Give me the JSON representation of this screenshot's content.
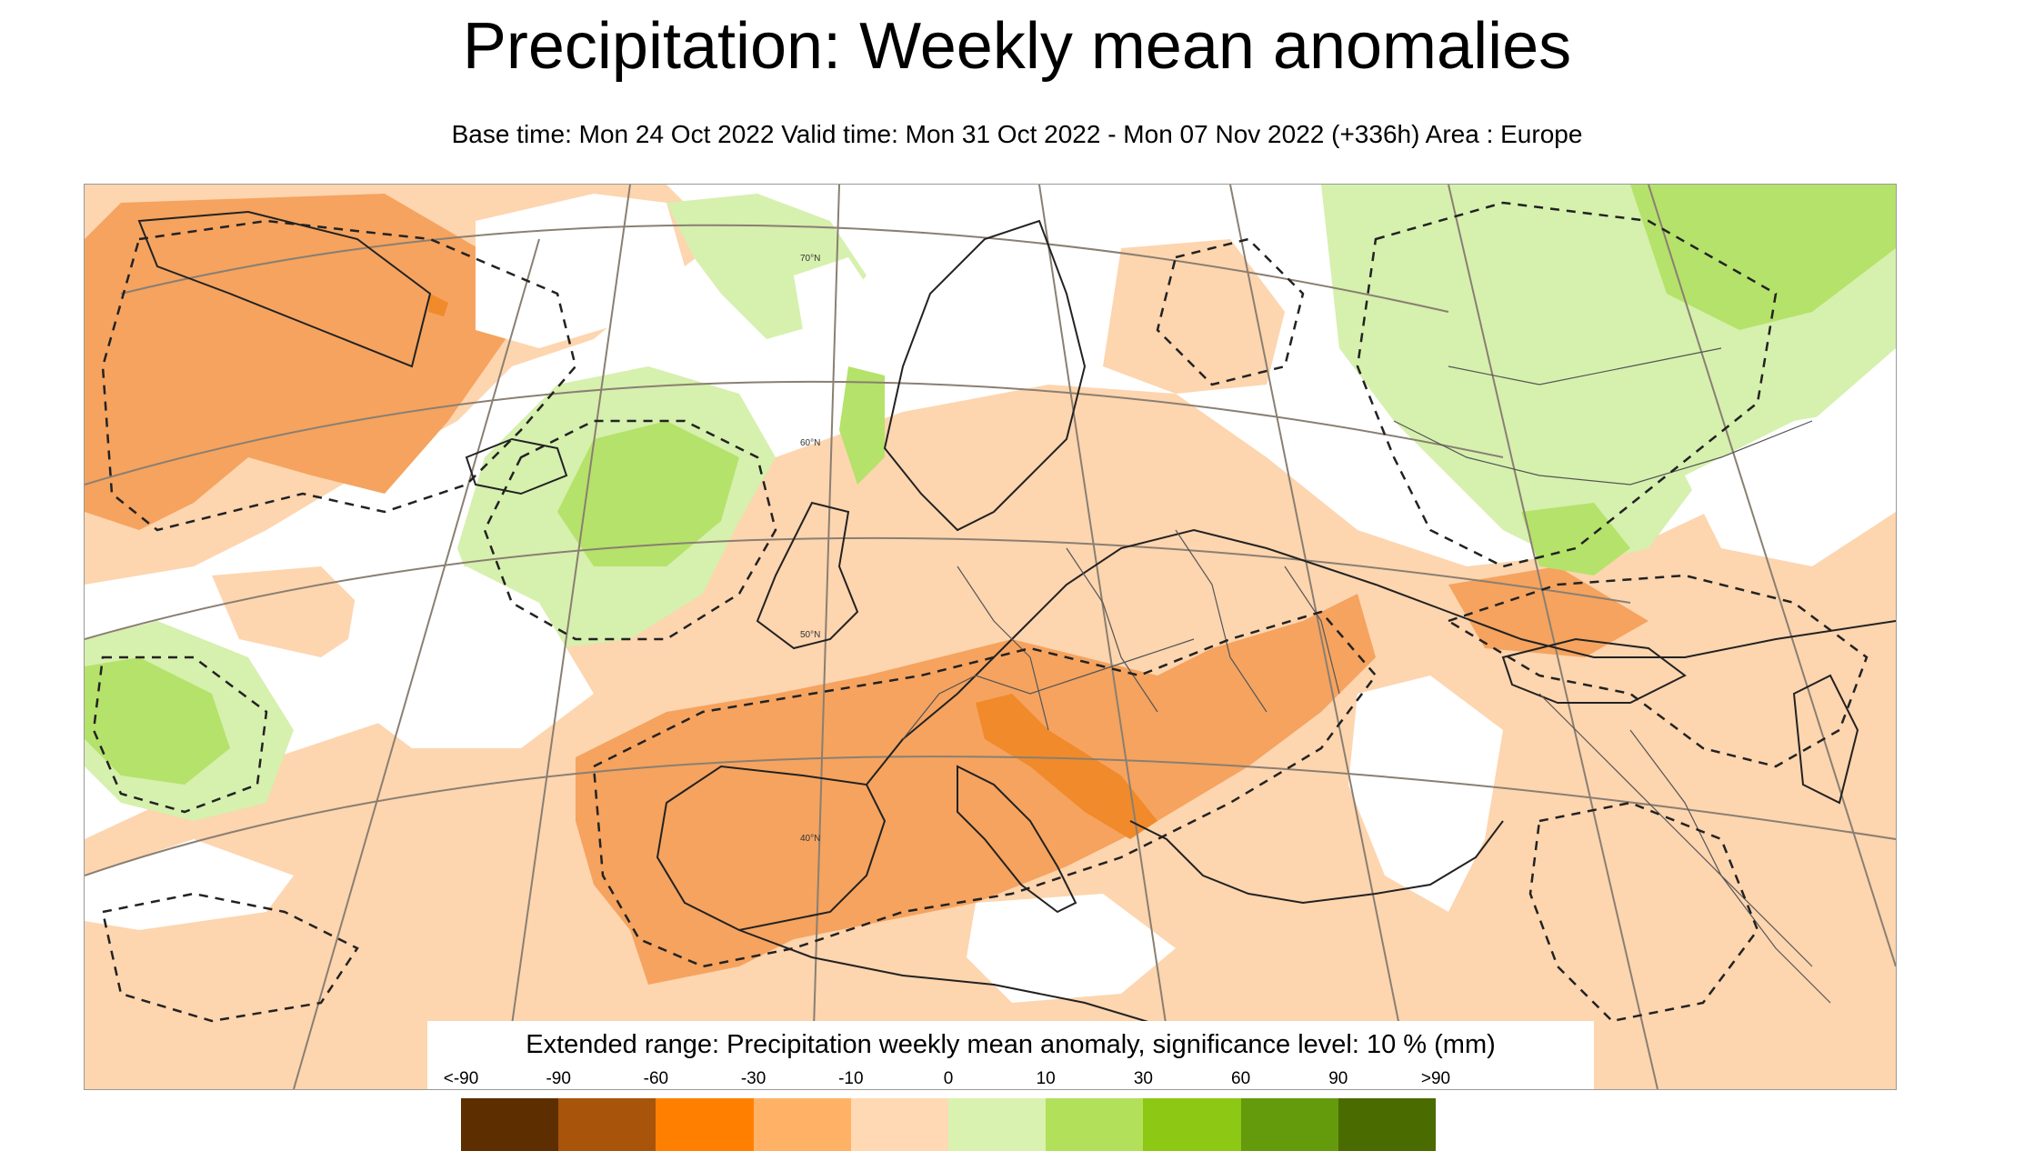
{
  "title": "Precipitation: Weekly mean anomalies",
  "subtitle": "Base time: Mon 24 Oct 2022 Valid time: Mon 31 Oct 2022 - Mon 07 Nov 2022 (+336h) Area : Europe",
  "map": {
    "area": "Europe",
    "latitude_labels": [
      "70°N",
      "60°N",
      "50°N",
      "40°N"
    ]
  },
  "legend": {
    "title": "Extended range: Precipitation weekly mean anomaly, significance level: 10 % (mm)",
    "tick_labels": [
      "<-90",
      "-90",
      "-60",
      "-30",
      "-10",
      "0",
      "10",
      "30",
      "60",
      "90",
      ">90"
    ],
    "colors": [
      "#5c2e00",
      "#a8540a",
      "#ff8000",
      "#ffb266",
      "#ffd9b3",
      "#d9f2b0",
      "#b3e05a",
      "#8cc814",
      "#649b0c",
      "#4a6b00"
    ]
  },
  "colors": {
    "dry_strong": "#f5a35f",
    "dry_light": "#fdd5af",
    "wet_light": "#d6f0ae",
    "wet_mid": "#b5e26a",
    "dry_max": "#f08a2a"
  }
}
